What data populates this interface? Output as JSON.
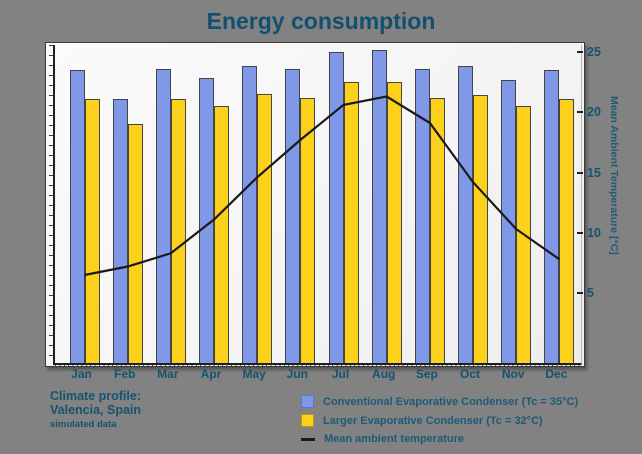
{
  "title": "Energy consumption",
  "colors": {
    "background": "#828282",
    "heading_text": "#124f70",
    "axis_text": "#14546f",
    "legend_text": "#1d5a78",
    "conventional_bar": "#7f98e8",
    "larger_bar": "#fcd11b",
    "temperature_line": "#1a1a1a",
    "plot_background": "#f6f6f6"
  },
  "right_axis": {
    "label": "Mean Ambient Temperature [°C]",
    "ticks": [
      25,
      20,
      15,
      10,
      5
    ]
  },
  "footnote": {
    "line1": "Climate profile:",
    "line2": "Valencia, Spain",
    "line3": "simulated data"
  },
  "legend": {
    "items": [
      {
        "swatch": "blue-square",
        "label": "Conventional Evaporative Condenser (Tc = 35°C)"
      },
      {
        "swatch": "yellow-square",
        "label": "Larger Evaporative Condenser (Tc = 32°C)"
      },
      {
        "swatch": "black-line",
        "label": "Mean ambient temperature"
      }
    ]
  },
  "chart_data": {
    "type": "bar",
    "title": "Energy consumption",
    "categories": [
      "Jan",
      "Feb",
      "Mar",
      "Apr",
      "May",
      "Jun",
      "Jul",
      "Aug",
      "Sep",
      "Oct",
      "Nov",
      "Dec"
    ],
    "series": [
      {
        "name": "Conventional Evaporative Condenser (Tc = 35°C)",
        "type": "bar",
        "color": "#7f98e8",
        "values": [
          23.6,
          21.2,
          23.7,
          22.9,
          23.9,
          23.7,
          25.1,
          25.3,
          23.7,
          23.9,
          22.8,
          23.6
        ]
      },
      {
        "name": "Larger Evaporative Condenser (Tc = 32°C)",
        "type": "bar",
        "color": "#fcd11b",
        "values": [
          21.2,
          19.1,
          21.2,
          20.6,
          21.6,
          21.3,
          22.6,
          22.6,
          21.3,
          21.5,
          20.6,
          21.2
        ]
      },
      {
        "name": "Mean ambient temperature",
        "type": "line",
        "axis": "right",
        "color": "#1a1a1a",
        "values": [
          6.6,
          7.3,
          8.4,
          11.2,
          14.7,
          17.8,
          20.7,
          21.4,
          19.2,
          14.3,
          10.4,
          7.9
        ]
      }
    ],
    "left_axis": {
      "label": "",
      "note": "energy axis has minor tick marks only, no numeric labels; bar values estimated against right-axis gridline scale"
    },
    "right_axis": {
      "label": "Mean Ambient Temperature [°C]",
      "range": [
        -0.7,
        25.67
      ],
      "ticks": [
        5,
        10,
        15,
        20,
        25
      ]
    },
    "grid": false,
    "legend_position": "bottom-right"
  }
}
